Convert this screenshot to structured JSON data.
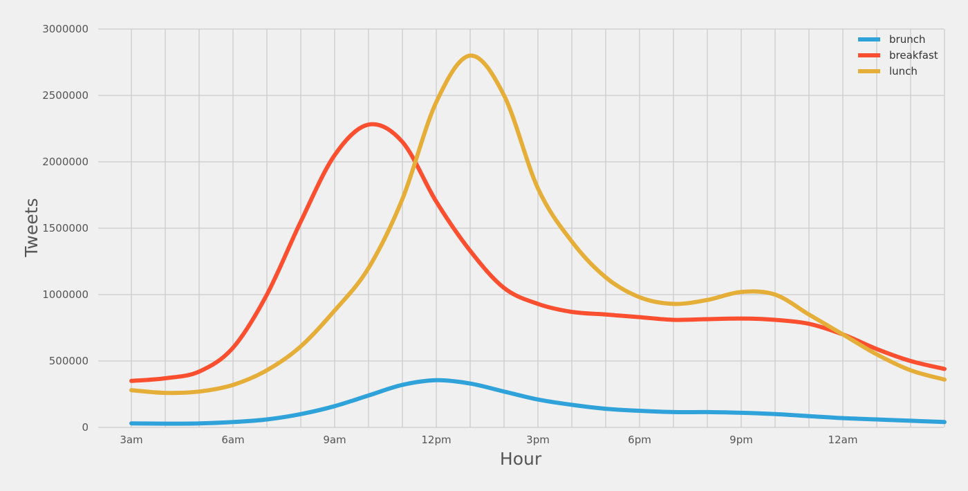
{
  "chart_data": {
    "type": "line",
    "xlabel": "Hour",
    "ylabel": "Tweets",
    "x_start": "3am",
    "x_step_hours": 1,
    "xlim": [
      "3am",
      "3am"
    ],
    "x_tick_labels": [
      "3am",
      "6am",
      "9am",
      "12pm",
      "3pm",
      "6pm",
      "9pm",
      "12am"
    ],
    "ylim": [
      0,
      3000000
    ],
    "y_ticks": [
      0,
      500000,
      1000000,
      1500000,
      2000000,
      2500000,
      3000000
    ],
    "grid": true,
    "legend_position": "top-right",
    "x": [
      "3am",
      "4am",
      "5am",
      "6am",
      "7am",
      "8am",
      "9am",
      "10am",
      "11am",
      "12pm",
      "1pm",
      "2pm",
      "3pm",
      "4pm",
      "5pm",
      "6pm",
      "7pm",
      "8pm",
      "9pm",
      "10pm",
      "11pm",
      "12am",
      "1am",
      "2am",
      "3am"
    ],
    "series": [
      {
        "name": "brunch",
        "color": "#30a2da",
        "values": [
          30000,
          28000,
          30000,
          40000,
          60000,
          100000,
          160000,
          240000,
          320000,
          355000,
          330000,
          270000,
          210000,
          170000,
          140000,
          125000,
          115000,
          115000,
          110000,
          100000,
          85000,
          70000,
          60000,
          50000,
          40000
        ]
      },
      {
        "name": "breakfast",
        "color": "#fc4f30",
        "values": [
          350000,
          370000,
          420000,
          600000,
          1000000,
          1550000,
          2050000,
          2280000,
          2150000,
          1700000,
          1330000,
          1050000,
          930000,
          870000,
          850000,
          830000,
          810000,
          815000,
          820000,
          810000,
          780000,
          700000,
          590000,
          500000,
          440000
        ]
      },
      {
        "name": "lunch",
        "color": "#e5ae38",
        "values": [
          280000,
          260000,
          270000,
          320000,
          430000,
          610000,
          880000,
          1200000,
          1720000,
          2450000,
          2800000,
          2500000,
          1800000,
          1400000,
          1130000,
          980000,
          930000,
          960000,
          1020000,
          1000000,
          850000,
          700000,
          550000,
          430000,
          360000
        ]
      }
    ]
  }
}
